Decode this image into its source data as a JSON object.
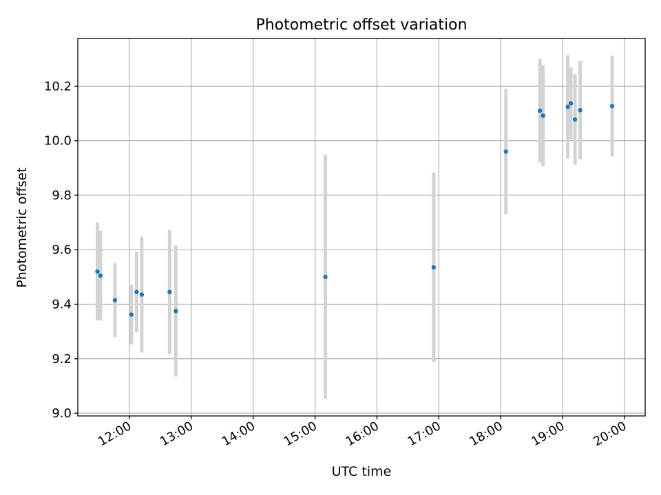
{
  "chart_data": {
    "type": "scatter",
    "title": "Photometric offset variation",
    "xlabel": "UTC time",
    "ylabel": "Photometric offset",
    "x_axis_kind": "time",
    "xlim": [
      "11:10",
      "20:20"
    ],
    "ylim": [
      8.99,
      10.375
    ],
    "xticks": [
      "12:00",
      "13:00",
      "14:00",
      "15:00",
      "16:00",
      "17:00",
      "18:00",
      "19:00",
      "20:00"
    ],
    "yticks": [
      "9.0",
      "9.2",
      "9.4",
      "9.6",
      "9.8",
      "10.0",
      "10.2"
    ],
    "grid": true,
    "legend": "none",
    "colors": {
      "points": "#1f77b4",
      "errorbars": "#d3d3d3",
      "grid": "#b0b0b0"
    },
    "points": [
      {
        "t": "11:29",
        "y": 9.52,
        "err": 0.18
      },
      {
        "t": "11:32",
        "y": 9.505,
        "err": 0.165
      },
      {
        "t": "11:46",
        "y": 9.415,
        "err": 0.135
      },
      {
        "t": "12:02",
        "y": 9.362,
        "err": 0.11
      },
      {
        "t": "12:07",
        "y": 9.445,
        "err": 0.148
      },
      {
        "t": "12:12",
        "y": 9.435,
        "err": 0.212
      },
      {
        "t": "12:39",
        "y": 9.445,
        "err": 0.228
      },
      {
        "t": "12:45",
        "y": 9.375,
        "err": 0.24
      },
      {
        "t": "15:10",
        "y": 9.5,
        "err": 0.448
      },
      {
        "t": "16:55",
        "y": 9.535,
        "err": 0.348
      },
      {
        "t": "18:05",
        "y": 9.96,
        "err": 0.23
      },
      {
        "t": "18:38",
        "y": 10.11,
        "err": 0.19
      },
      {
        "t": "18:41",
        "y": 10.092,
        "err": 0.185
      },
      {
        "t": "19:05",
        "y": 10.124,
        "err": 0.19
      },
      {
        "t": "19:08",
        "y": 10.137,
        "err": 0.132
      },
      {
        "t": "19:12",
        "y": 10.078,
        "err": 0.167
      },
      {
        "t": "19:17",
        "y": 10.112,
        "err": 0.18
      },
      {
        "t": "19:48",
        "y": 10.127,
        "err": 0.185
      }
    ]
  }
}
